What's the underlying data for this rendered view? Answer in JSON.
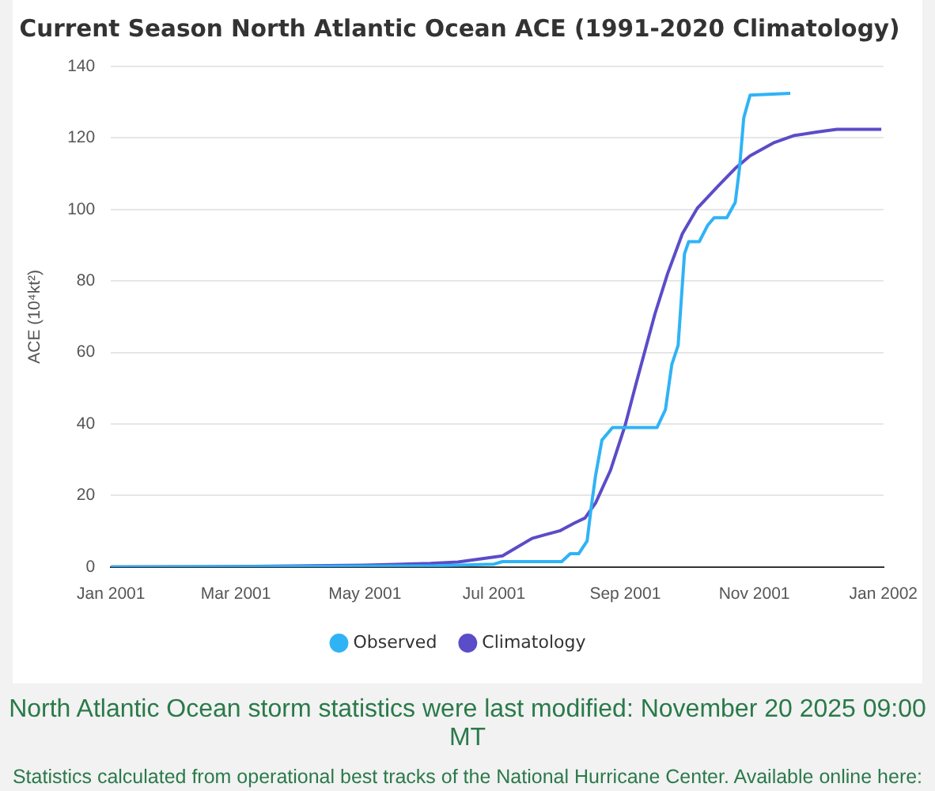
{
  "chart_data": {
    "type": "line",
    "title": "Current Season North Atlantic Ocean ACE (1991-2020 Climatology)",
    "ylabel": "ACE (10⁴kt²)",
    "xlim": [
      "2001-01-01",
      "2002-01-01"
    ],
    "xticks": [
      {
        "value": "2001-01-01",
        "label": "Jan 2001"
      },
      {
        "value": "2001-03-01",
        "label": "Mar 2001"
      },
      {
        "value": "2001-05-01",
        "label": "May 2001"
      },
      {
        "value": "2001-07-01",
        "label": "Jul 2001"
      },
      {
        "value": "2001-09-01",
        "label": "Sep 2001"
      },
      {
        "value": "2001-11-01",
        "label": "Nov 2001"
      },
      {
        "value": "2002-01-01",
        "label": "Jan 2002"
      }
    ],
    "ylim": [
      0,
      140
    ],
    "yticks": [
      0,
      20,
      40,
      60,
      80,
      100,
      120,
      140
    ],
    "grid": "y",
    "legend": "bottom",
    "marker": "none",
    "line_style": "solid",
    "series": [
      {
        "name": "Observed",
        "color": "#2fb3f5",
        "x": [
          "2001-01-01",
          "2001-06-01",
          "2001-07-01",
          "2001-07-05",
          "2001-08-02",
          "2001-08-06",
          "2001-08-10",
          "2001-08-14",
          "2001-08-16",
          "2001-08-18",
          "2001-08-21",
          "2001-08-26",
          "2001-09-16",
          "2001-09-20",
          "2001-09-23",
          "2001-09-26",
          "2001-09-29",
          "2001-10-01",
          "2001-10-06",
          "2001-10-10",
          "2001-10-13",
          "2001-10-19",
          "2001-10-23",
          "2001-10-25",
          "2001-10-27",
          "2001-10-30",
          "2001-11-18"
        ],
        "values": [
          0,
          0.3,
          0.8,
          1.5,
          1.5,
          3.7,
          3.7,
          7.3,
          17,
          25.6,
          35.5,
          39,
          39,
          44,
          56.6,
          62,
          87.6,
          91,
          91,
          95.6,
          97.7,
          97.7,
          102,
          111.5,
          125.6,
          132,
          132.5
        ]
      },
      {
        "name": "Climatology",
        "color": "#5b4cc8",
        "x": [
          "2001-01-01",
          "2001-03-01",
          "2001-05-01",
          "2001-06-01",
          "2001-06-14",
          "2001-07-05",
          "2001-07-11",
          "2001-07-19",
          "2001-07-25",
          "2001-08-01",
          "2001-08-08",
          "2001-08-13",
          "2001-08-18",
          "2001-08-25",
          "2001-09-01",
          "2001-09-06",
          "2001-09-15",
          "2001-09-21",
          "2001-09-28",
          "2001-10-05",
          "2001-10-15",
          "2001-10-23",
          "2001-10-30",
          "2001-11-10",
          "2001-11-20",
          "2001-12-01",
          "2001-12-10",
          "2001-12-31"
        ],
        "values": [
          0,
          0.1,
          0.5,
          1,
          1.4,
          3.1,
          5.2,
          8,
          9,
          10.1,
          12.3,
          13.7,
          17.9,
          27,
          39.7,
          51,
          70.7,
          82,
          93.2,
          100.3,
          106.6,
          111.5,
          115,
          118.6,
          120.7,
          121.7,
          122.4,
          122.4
        ]
      }
    ],
    "annotations": [
      "North Atlantic Ocean storm statistics were last modified: November 20 2025 09:00 MT",
      "Statistics calculated from operational best tracks of the National Hurricane Center. Available online here:"
    ]
  }
}
